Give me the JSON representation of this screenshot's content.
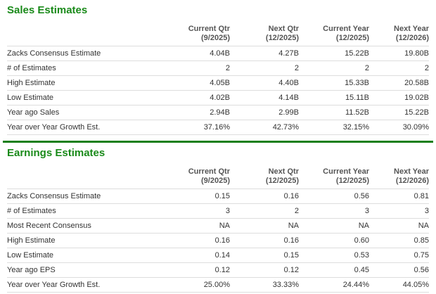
{
  "sales": {
    "title": "Sales Estimates",
    "headers": [
      {
        "line1": "",
        "line2": ""
      },
      {
        "line1": "Current Qtr",
        "line2": "(9/2025)"
      },
      {
        "line1": "Next Qtr",
        "line2": "(12/2025)"
      },
      {
        "line1": "Current Year",
        "line2": "(12/2025)"
      },
      {
        "line1": "Next Year",
        "line2": "(12/2026)"
      }
    ],
    "rows": [
      {
        "label": "Zacks Consensus Estimate",
        "values": [
          "4.04B",
          "4.27B",
          "15.22B",
          "19.80B"
        ]
      },
      {
        "label": "# of Estimates",
        "values": [
          "2",
          "2",
          "2",
          "2"
        ]
      },
      {
        "label": "High Estimate",
        "values": [
          "4.05B",
          "4.40B",
          "15.33B",
          "20.58B"
        ]
      },
      {
        "label": "Low Estimate",
        "values": [
          "4.02B",
          "4.14B",
          "15.11B",
          "19.02B"
        ]
      },
      {
        "label": "Year ago Sales",
        "values": [
          "2.94B",
          "2.99B",
          "11.52B",
          "15.22B"
        ]
      },
      {
        "label": "Year over Year Growth Est.",
        "values": [
          "37.16%",
          "42.73%",
          "32.15%",
          "30.09%"
        ]
      }
    ]
  },
  "earnings": {
    "title": "Earnings Estimates",
    "headers": [
      {
        "line1": "",
        "line2": ""
      },
      {
        "line1": "Current Qtr",
        "line2": "(9/2025)"
      },
      {
        "line1": "Next Qtr",
        "line2": "(12/2025)"
      },
      {
        "line1": "Current Year",
        "line2": "(12/2025)"
      },
      {
        "line1": "Next Year",
        "line2": "(12/2026)"
      }
    ],
    "rows": [
      {
        "label": "Zacks Consensus Estimate",
        "values": [
          "0.15",
          "0.16",
          "0.56",
          "0.81"
        ]
      },
      {
        "label": "# of Estimates",
        "values": [
          "3",
          "2",
          "3",
          "3"
        ]
      },
      {
        "label": "Most Recent Consensus",
        "values": [
          "NA",
          "NA",
          "NA",
          "NA"
        ]
      },
      {
        "label": "High Estimate",
        "values": [
          "0.16",
          "0.16",
          "0.60",
          "0.85"
        ]
      },
      {
        "label": "Low Estimate",
        "values": [
          "0.14",
          "0.15",
          "0.53",
          "0.75"
        ]
      },
      {
        "label": "Year ago EPS",
        "values": [
          "0.12",
          "0.12",
          "0.45",
          "0.56"
        ]
      },
      {
        "label": "Year over Year Growth Est.",
        "values": [
          "25.00%",
          "33.33%",
          "24.44%",
          "44.05%"
        ]
      }
    ]
  },
  "colors": {
    "title_green": "#1a8a1a",
    "divider_green": "#1a7f1a",
    "row_border": "#dddddd"
  }
}
